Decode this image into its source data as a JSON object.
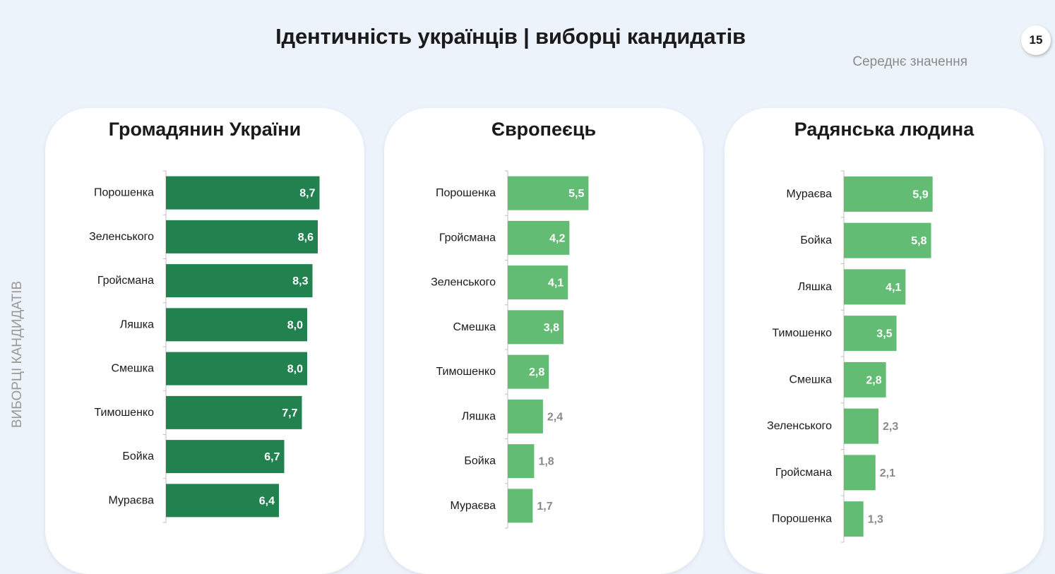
{
  "header": {
    "title": "Ідентичність українців | виборці кандидатів",
    "page_number": "15",
    "subtitle": "Середнє значення",
    "side_label": "ВИБОРЦІ КАНДИДАТІВ"
  },
  "colors": {
    "dark_green": "#22824f",
    "light_green": "#62bc73",
    "card_bg": "#ffffff",
    "page_bg": "#edf3fb"
  },
  "chart_data": [
    {
      "type": "bar",
      "orientation": "horizontal",
      "title": "Громадянин України",
      "color": "#22824f",
      "categories": [
        "Порошенка",
        "Зеленського",
        "Гройсмана",
        "Ляшка",
        "Смешка",
        "Тимошенко",
        "Бойка",
        "Мураєва"
      ],
      "values": [
        8.7,
        8.6,
        8.3,
        8.0,
        8.0,
        7.7,
        6.7,
        6.4
      ],
      "value_labels": [
        "8,7",
        "8,6",
        "8,3",
        "8,0",
        "8,0",
        "7,7",
        "6,7",
        "6,4"
      ],
      "xlim": [
        0,
        10
      ]
    },
    {
      "type": "bar",
      "orientation": "horizontal",
      "title": "Європеєць",
      "color": "#62bc73",
      "categories": [
        "Порошенка",
        "Гройсмана",
        "Зеленського",
        "Смешка",
        "Тимошенко",
        "Ляшка",
        "Бойка",
        "Мураєва"
      ],
      "values": [
        5.5,
        4.2,
        4.1,
        3.8,
        2.8,
        2.4,
        1.8,
        1.7
      ],
      "value_labels": [
        "5,5",
        "4,2",
        "4,1",
        "3,8",
        "2,8",
        "2,4",
        "1,8",
        "1,7"
      ],
      "xlim": [
        0,
        10
      ]
    },
    {
      "type": "bar",
      "orientation": "horizontal",
      "title": "Радянська людина",
      "color": "#62bc73",
      "categories": [
        "Мураєва",
        "Бойка",
        "Ляшка",
        "Тимошенко",
        "Смешка",
        "Зеленського",
        "Гройсмана",
        "Порошенка"
      ],
      "values": [
        5.9,
        5.8,
        4.1,
        3.5,
        2.8,
        2.3,
        2.1,
        1.3
      ],
      "value_labels": [
        "5,9",
        "5,8",
        "4,1",
        "3,5",
        "2,8",
        "2,3",
        "2,1",
        "1,3"
      ],
      "xlim": [
        0,
        10
      ]
    }
  ]
}
